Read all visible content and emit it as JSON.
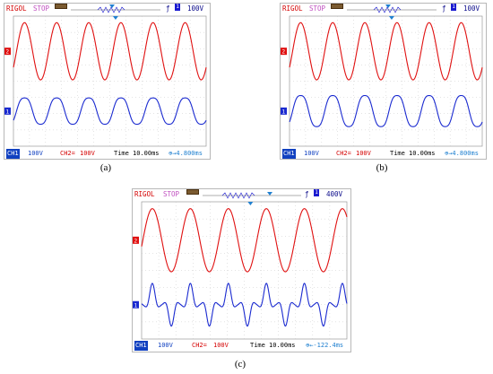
{
  "panels": [
    {
      "id": "a",
      "brand": "RIGOL",
      "state": "STOP",
      "trigger_icon": "ƒ",
      "trigger_mode": "1",
      "trigger_level": "100V",
      "ch1_tag": "CH1",
      "ch1_value": "100V",
      "ch2_tag": "CH2=",
      "ch2_value": "100V",
      "time_label": "Time",
      "time_value": "10.00ms",
      "offset": "⊕→4.800ms",
      "marker_ch1": "1",
      "marker_ch2": "2",
      "caption": "(a)"
    },
    {
      "id": "b",
      "brand": "RIGOL",
      "state": "STOP",
      "trigger_icon": "ƒ",
      "trigger_mode": "1",
      "trigger_level": "100V",
      "ch1_tag": "CH1",
      "ch1_value": "100V",
      "ch2_tag": "CH2=",
      "ch2_value": "100V",
      "time_label": "Time",
      "time_value": "10.00ms",
      "offset": "⊕→4.800ms",
      "marker_ch1": "1",
      "marker_ch2": "2",
      "caption": "(b)"
    },
    {
      "id": "c",
      "brand": "RIGOL",
      "state": "STOP",
      "trigger_icon": "ƒ",
      "trigger_mode": "1",
      "trigger_level": "400V",
      "ch1_tag": "CH1",
      "ch1_value": "100V",
      "ch2_tag": "CH2=",
      "ch2_value": "100V",
      "time_label": "Time",
      "time_value": "10.00ms",
      "offset": "⊕←-122.4ms",
      "marker_ch1": "1",
      "marker_ch2": "2",
      "caption": "(c)"
    }
  ],
  "colors": {
    "ch1": "#1a2ad0",
    "ch2": "#e01010",
    "grid": "#c8c8c8",
    "text_dark": "#0a0a8a"
  }
}
